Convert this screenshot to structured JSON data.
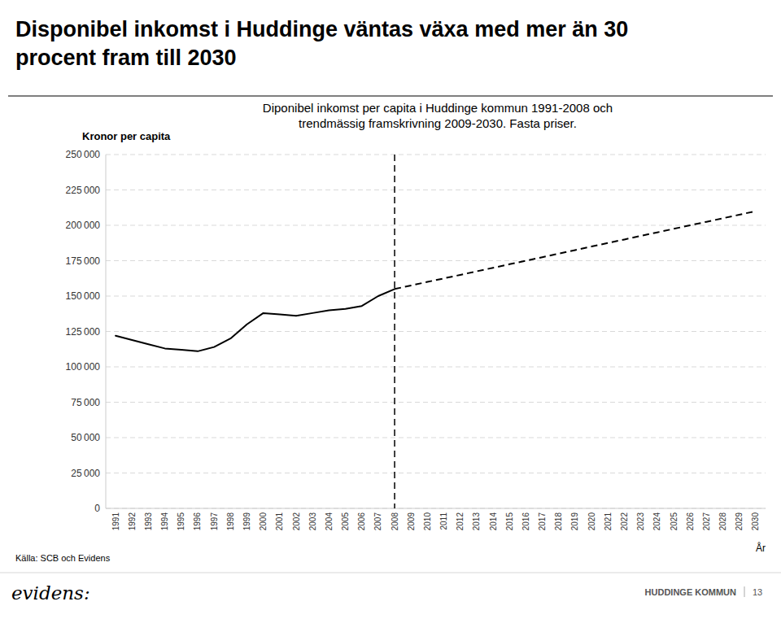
{
  "chart_data": {
    "type": "line",
    "title": "Disponibel inkomst i Huddinge väntas växa med mer än 30\nprocent fram till 2030",
    "subtitle": "Diponibel inkomst per capita i Huddinge kommun 1991-2008 och\ntrendmässig framskrivning 2009-2030. Fasta priser.",
    "y_label": "Kronor per capita",
    "x_label": "År",
    "annotations": [
      "Källa: SCB och Evidens",
      "evidens:",
      "HUDDINGE KOMMUN",
      "13"
    ],
    "xlim": [
      1990.4,
      2030.6
    ],
    "xticks": [
      1991,
      1992,
      1993,
      1994,
      1995,
      1996,
      1997,
      1998,
      1999,
      2000,
      2001,
      2002,
      2003,
      2004,
      2005,
      2006,
      2007,
      2008,
      2009,
      2010,
      2011,
      2012,
      2013,
      2014,
      2015,
      2016,
      2017,
      2018,
      2019,
      2020,
      2021,
      2022,
      2023,
      2024,
      2025,
      2026,
      2027,
      2028,
      2029,
      2030
    ],
    "ylim": [
      0,
      250000
    ],
    "yticks": [
      0,
      {
        "value": 25000,
        "label": "25 000"
      },
      {
        "value": 50000,
        "label": "50 000"
      },
      {
        "value": 75000,
        "label": "75 000"
      },
      {
        "value": 100000,
        "label": "100 000"
      },
      {
        "value": 125000,
        "label": "125 000"
      },
      {
        "value": 150000,
        "label": "150 000"
      },
      {
        "value": 175000,
        "label": "175 000"
      },
      {
        "value": 200000,
        "label": "200 000"
      },
      {
        "value": 225000,
        "label": "225 000"
      },
      {
        "value": 250000,
        "label": "250 000"
      }
    ],
    "grid": true,
    "series": [
      {
        "x": [
          1991,
          1992,
          1993,
          1994,
          1995,
          1996,
          1997,
          1998,
          1999,
          2000,
          2001,
          2002,
          2003,
          2004,
          2005,
          2006,
          2007,
          2008
        ],
        "values": [
          122000,
          119000,
          116000,
          113000,
          112000,
          111000,
          114000,
          120000,
          130000,
          138000,
          137000,
          136000,
          138000,
          140000,
          141000,
          143000,
          150000,
          155000
        ],
        "color": "#000000",
        "line_style": "solid"
      },
      {
        "x": [
          2008,
          2009,
          2010,
          2011,
          2012,
          2013,
          2014,
          2015,
          2016,
          2017,
          2018,
          2019,
          2020,
          2021,
          2022,
          2023,
          2024,
          2025,
          2026,
          2027,
          2028,
          2029,
          2030
        ],
        "values": [
          155000,
          157500,
          160000,
          162500,
          165000,
          167500,
          170000,
          172500,
          175000,
          177500,
          180000,
          182500,
          185000,
          187500,
          190000,
          192500,
          195000,
          197500,
          200000,
          202500,
          205000,
          207500,
          210000
        ],
        "color": "#000000",
        "line_style": "dashed"
      }
    ],
    "reference_lines": [
      {
        "x": 2008,
        "color": "#000000",
        "line_style": "dashed"
      }
    ]
  }
}
